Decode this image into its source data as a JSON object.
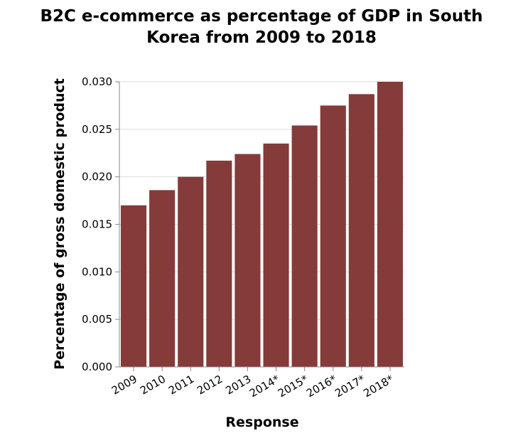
{
  "chart_data": {
    "type": "bar",
    "title": "B2C e-commerce as percentage of GDP in South Korea from 2009 to 2018",
    "title_lines": [
      "B2C e-commerce as percentage of GDP in South",
      "Korea from 2009 to 2018"
    ],
    "xlabel": "Response",
    "ylabel": "Percentage of gross domestic product",
    "categories": [
      "2009",
      "2010",
      "2011",
      "2012",
      "2013",
      "2014*",
      "2015*",
      "2016*",
      "2017*",
      "2018*"
    ],
    "values": [
      0.017,
      0.0186,
      0.02,
      0.0217,
      0.0224,
      0.0235,
      0.0254,
      0.0275,
      0.0287,
      0.03
    ],
    "ylim": [
      0,
      0.03
    ],
    "yticks": [
      "0.000",
      "0.005",
      "0.010",
      "0.015",
      "0.020",
      "0.025",
      "0.030"
    ],
    "ytick_values": [
      0,
      0.005,
      0.01,
      0.015,
      0.02,
      0.025,
      0.03
    ],
    "grid": true,
    "bar_color": "#843b39"
  }
}
